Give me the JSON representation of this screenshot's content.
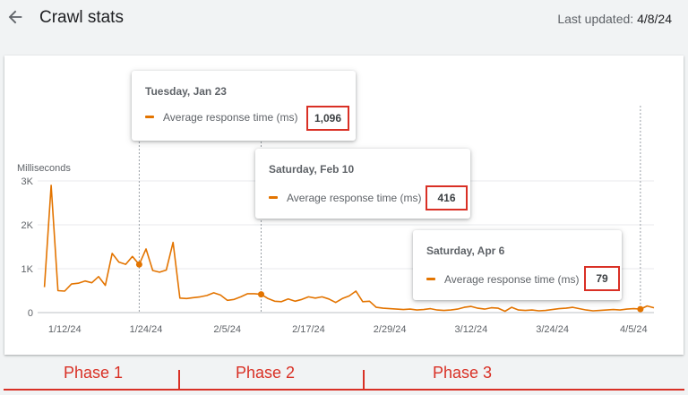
{
  "header": {
    "title": "Crawl stats",
    "last_updated_label": "Last updated:",
    "last_updated_date": "4/8/24",
    "back_icon": "arrow-back-icon"
  },
  "colors": {
    "series": "#e37400",
    "highlight": "#d93025",
    "grid": "#e8eaed",
    "text": "#5f6368"
  },
  "chart_data": {
    "type": "line",
    "ylabel": "Milliseconds",
    "ylim": [
      0,
      3000
    ],
    "yticks": [
      {
        "value": 0,
        "label": "0"
      },
      {
        "value": 1000,
        "label": "1K"
      },
      {
        "value": 2000,
        "label": "2K"
      },
      {
        "value": 3000,
        "label": "3K"
      }
    ],
    "xlim": [
      "2024-01-08",
      "2024-04-08"
    ],
    "xticks": [
      {
        "date": "2024-01-12",
        "label": "1/12/24"
      },
      {
        "date": "2024-01-24",
        "label": "1/24/24"
      },
      {
        "date": "2024-02-05",
        "label": "2/5/24"
      },
      {
        "date": "2024-02-17",
        "label": "2/17/24"
      },
      {
        "date": "2024-02-29",
        "label": "2/29/24"
      },
      {
        "date": "2024-03-12",
        "label": "3/12/24"
      },
      {
        "date": "2024-03-24",
        "label": "3/24/24"
      },
      {
        "date": "2024-04-05",
        "label": "4/5/24"
      }
    ],
    "grid": true,
    "series": [
      {
        "name": "Average response time (ms)",
        "points": [
          [
            "2024-01-09",
            580
          ],
          [
            "2024-01-10",
            2900
          ],
          [
            "2024-01-11",
            500
          ],
          [
            "2024-01-12",
            490
          ],
          [
            "2024-01-13",
            650
          ],
          [
            "2024-01-14",
            670
          ],
          [
            "2024-01-15",
            720
          ],
          [
            "2024-01-16",
            680
          ],
          [
            "2024-01-17",
            820
          ],
          [
            "2024-01-18",
            620
          ],
          [
            "2024-01-19",
            1350
          ],
          [
            "2024-01-20",
            1150
          ],
          [
            "2024-01-21",
            1100
          ],
          [
            "2024-01-22",
            1280
          ],
          [
            "2024-01-23",
            1096
          ],
          [
            "2024-01-24",
            1450
          ],
          [
            "2024-01-25",
            960
          ],
          [
            "2024-01-26",
            920
          ],
          [
            "2024-01-27",
            970
          ],
          [
            "2024-01-28",
            1600
          ],
          [
            "2024-01-29",
            330
          ],
          [
            "2024-01-30",
            320
          ],
          [
            "2024-01-31",
            340
          ],
          [
            "2024-02-01",
            360
          ],
          [
            "2024-02-02",
            390
          ],
          [
            "2024-02-03",
            450
          ],
          [
            "2024-02-04",
            400
          ],
          [
            "2024-02-05",
            280
          ],
          [
            "2024-02-06",
            300
          ],
          [
            "2024-02-07",
            360
          ],
          [
            "2024-02-08",
            430
          ],
          [
            "2024-02-09",
            430
          ],
          [
            "2024-02-10",
            416
          ],
          [
            "2024-02-11",
            320
          ],
          [
            "2024-02-12",
            260
          ],
          [
            "2024-02-13",
            250
          ],
          [
            "2024-02-14",
            310
          ],
          [
            "2024-02-15",
            260
          ],
          [
            "2024-02-16",
            300
          ],
          [
            "2024-02-17",
            360
          ],
          [
            "2024-02-18",
            330
          ],
          [
            "2024-02-19",
            360
          ],
          [
            "2024-02-20",
            310
          ],
          [
            "2024-02-21",
            230
          ],
          [
            "2024-02-22",
            320
          ],
          [
            "2024-02-23",
            380
          ],
          [
            "2024-02-24",
            490
          ],
          [
            "2024-02-25",
            250
          ],
          [
            "2024-02-26",
            260
          ],
          [
            "2024-02-27",
            120
          ],
          [
            "2024-02-28",
            100
          ],
          [
            "2024-02-29",
            90
          ],
          [
            "2024-03-01",
            80
          ],
          [
            "2024-03-02",
            70
          ],
          [
            "2024-03-03",
            80
          ],
          [
            "2024-03-04",
            60
          ],
          [
            "2024-03-05",
            70
          ],
          [
            "2024-03-06",
            90
          ],
          [
            "2024-03-07",
            60
          ],
          [
            "2024-03-08",
            50
          ],
          [
            "2024-03-09",
            60
          ],
          [
            "2024-03-10",
            80
          ],
          [
            "2024-03-11",
            120
          ],
          [
            "2024-03-12",
            140
          ],
          [
            "2024-03-13",
            100
          ],
          [
            "2024-03-14",
            80
          ],
          [
            "2024-03-15",
            110
          ],
          [
            "2024-03-16",
            100
          ],
          [
            "2024-03-17",
            30
          ],
          [
            "2024-03-18",
            120
          ],
          [
            "2024-03-19",
            60
          ],
          [
            "2024-03-20",
            50
          ],
          [
            "2024-03-21",
            60
          ],
          [
            "2024-03-22",
            40
          ],
          [
            "2024-03-23",
            50
          ],
          [
            "2024-03-24",
            70
          ],
          [
            "2024-03-25",
            90
          ],
          [
            "2024-03-26",
            100
          ],
          [
            "2024-03-27",
            120
          ],
          [
            "2024-03-28",
            90
          ],
          [
            "2024-03-29",
            60
          ],
          [
            "2024-03-30",
            40
          ],
          [
            "2024-03-31",
            50
          ],
          [
            "2024-04-01",
            60
          ],
          [
            "2024-04-02",
            70
          ],
          [
            "2024-04-03",
            60
          ],
          [
            "2024-04-04",
            80
          ],
          [
            "2024-04-05",
            90
          ],
          [
            "2024-04-06",
            79
          ],
          [
            "2024-04-07",
            150
          ],
          [
            "2024-04-08",
            110
          ]
        ]
      }
    ],
    "highlights": [
      "2024-01-23",
      "2024-02-10",
      "2024-04-06"
    ]
  },
  "tooltips": [
    {
      "date": "Tuesday, Jan 23",
      "metric": "Average response time (ms)",
      "value": "1,096"
    },
    {
      "date": "Saturday, Feb 10",
      "metric": "Average response time (ms)",
      "value": "416"
    },
    {
      "date": "Saturday, Apr 6",
      "metric": "Average response time (ms)",
      "value": "79"
    }
  ],
  "phases": [
    {
      "label": "Phase 1"
    },
    {
      "label": "Phase 2"
    },
    {
      "label": "Phase 3"
    }
  ]
}
